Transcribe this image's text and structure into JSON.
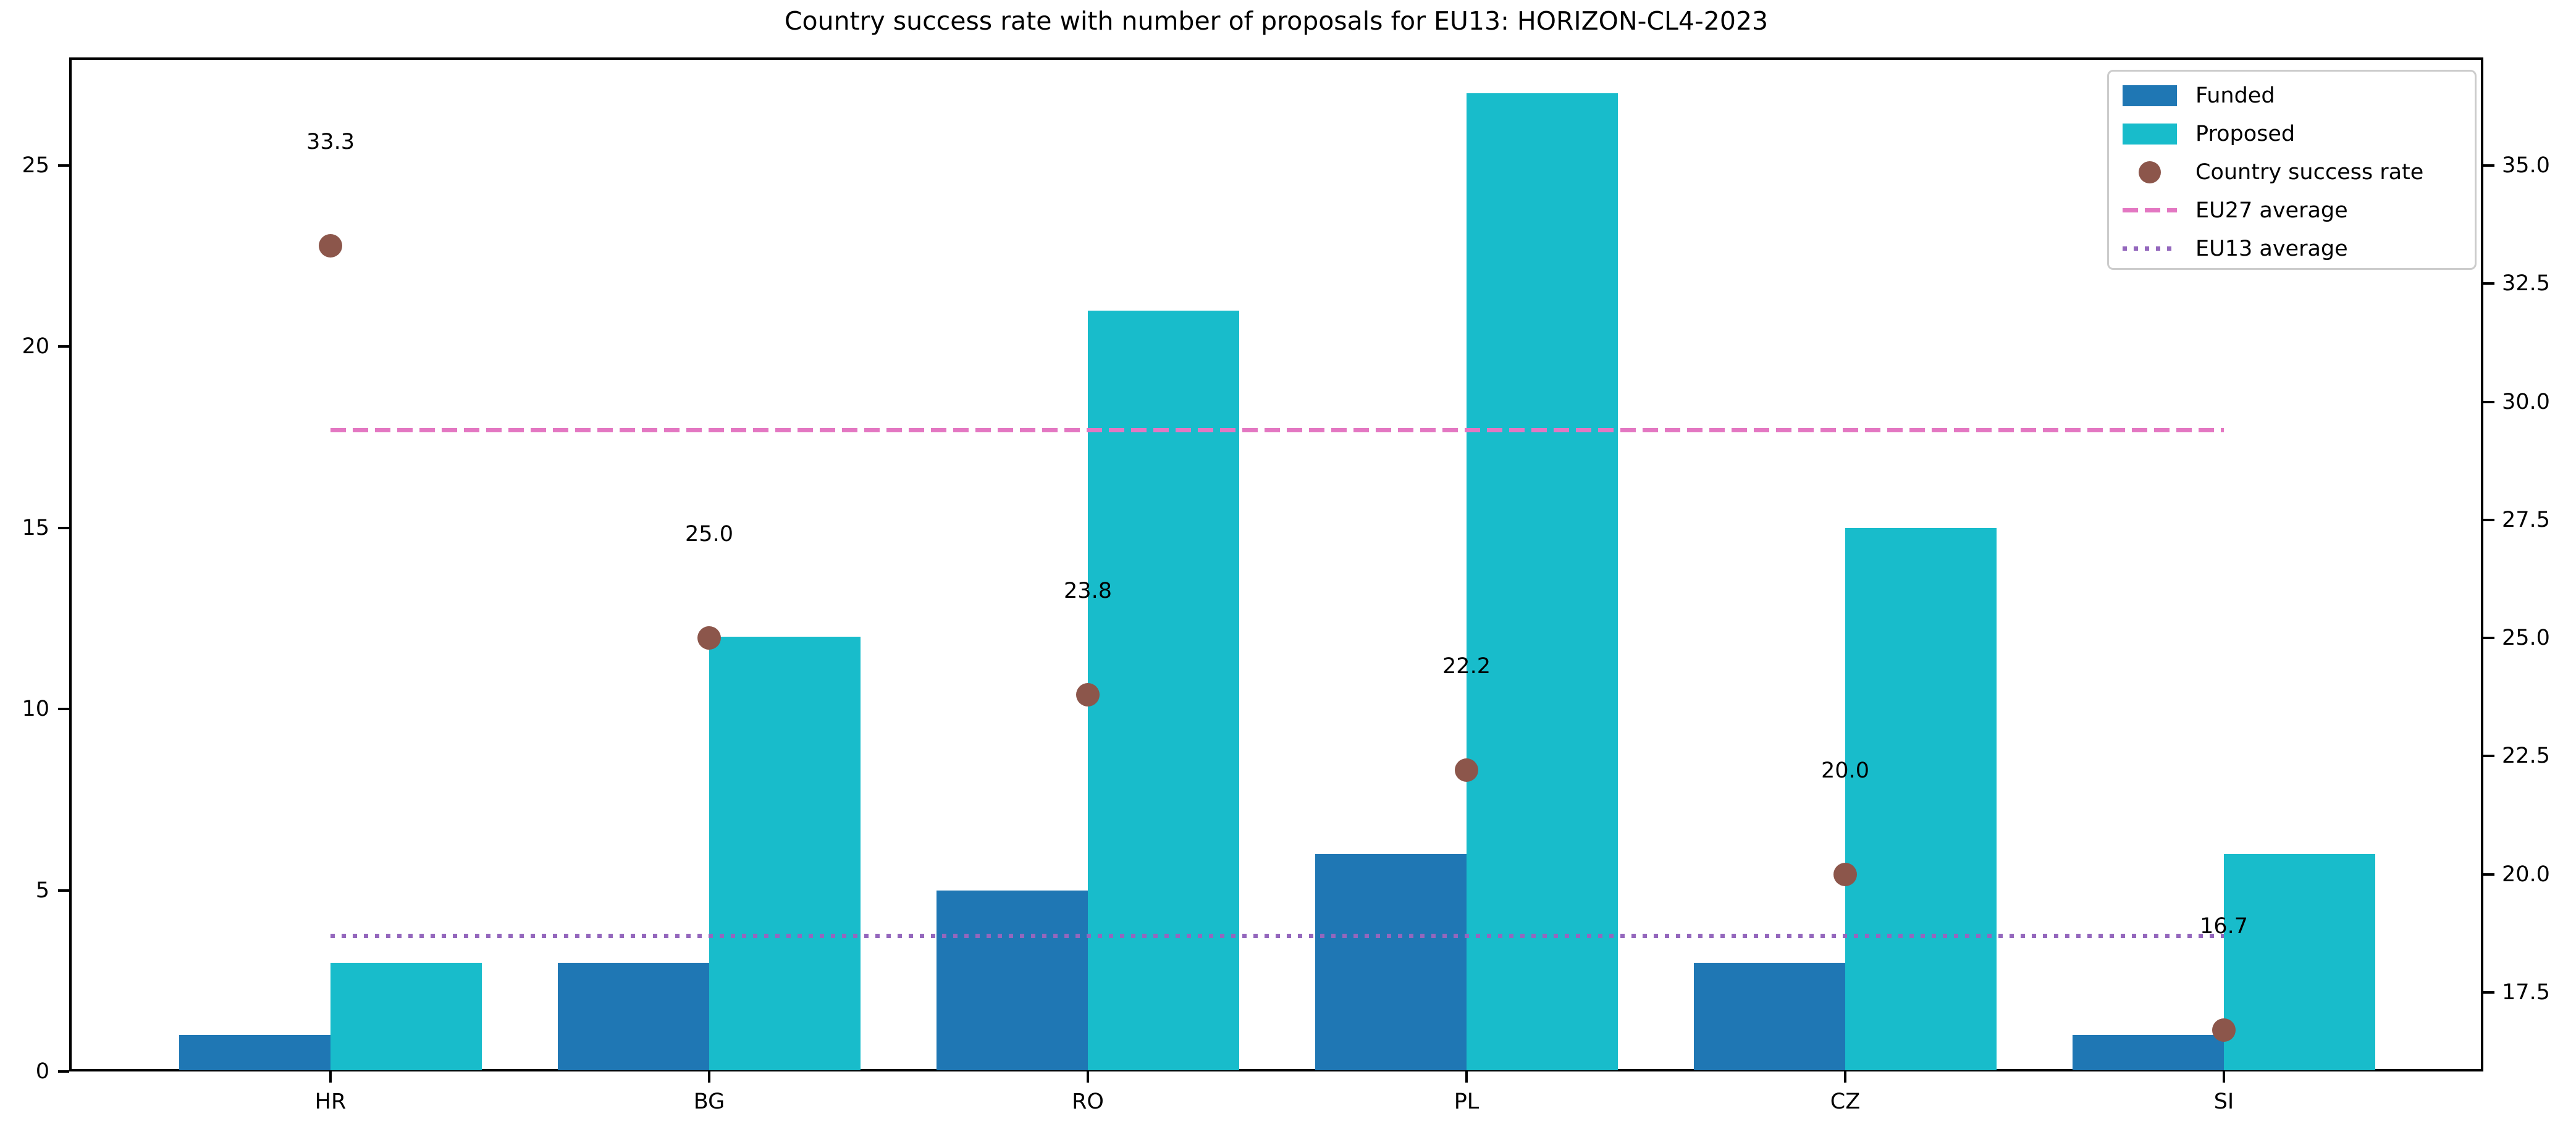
{
  "title": "Country success rate with number of proposals for EU13: HORIZON-CL4-2023",
  "legend": {
    "items": [
      {
        "label": "Funded",
        "swatch": "patch",
        "color": "#1f77b4"
      },
      {
        "label": "Proposed",
        "swatch": "patch",
        "color": "#18bccb"
      },
      {
        "label": "Country success rate",
        "swatch": "dot",
        "color": "#8c564b"
      },
      {
        "label": "EU27 average",
        "swatch": "dashed",
        "color": "#e377c2"
      },
      {
        "label": "EU13 average",
        "swatch": "dotted",
        "color": "#9467bd"
      }
    ]
  },
  "chart_data": {
    "type": "bar",
    "title": "Country success rate with number of proposals for EU13: HORIZON-CL4-2023",
    "categories": [
      "HR",
      "BG",
      "RO",
      "PL",
      "CZ",
      "SI"
    ],
    "series": [
      {
        "name": "Funded",
        "type": "bar",
        "axis": "left",
        "color": "#1f77b4",
        "values": [
          1,
          3,
          5,
          6,
          3,
          1
        ]
      },
      {
        "name": "Proposed",
        "type": "bar",
        "axis": "left",
        "color": "#18bccb",
        "values": [
          3,
          12,
          21,
          27,
          15,
          6
        ]
      },
      {
        "name": "Country success rate",
        "type": "scatter",
        "axis": "right",
        "color": "#8c564b",
        "values": [
          33.3,
          25.0,
          23.8,
          22.2,
          20.0,
          16.7
        ],
        "point_labels": [
          "33.3",
          "25.0",
          "23.8",
          "22.2",
          "20.0",
          "16.7"
        ]
      }
    ],
    "hlines": [
      {
        "name": "EU27 average",
        "axis": "right",
        "value": 29.4,
        "style": "dashed",
        "color": "#e377c2"
      },
      {
        "name": "EU13 average",
        "axis": "right",
        "value": 18.7,
        "style": "dotted",
        "color": "#9467bd"
      }
    ],
    "left_axis": {
      "ticks": [
        "0",
        "5",
        "10",
        "15",
        "20",
        "25"
      ],
      "tick_values": [
        0,
        5,
        10,
        15,
        20,
        25
      ],
      "range": [
        0,
        28.0
      ]
    },
    "right_axis": {
      "ticks": [
        "17.5",
        "20.0",
        "22.5",
        "25.0",
        "27.5",
        "30.0",
        "32.5",
        "35.0"
      ],
      "tick_values": [
        17.5,
        20.0,
        22.5,
        25.0,
        27.5,
        30.0,
        32.5,
        35.0
      ],
      "range": [
        15.8,
        37.3
      ]
    },
    "legend_position": "upper right",
    "grid": false,
    "colors": {
      "funded": "#1f77b4",
      "proposed": "#18bccb",
      "success_dot": "#8c564b",
      "eu27_line": "#e377c2",
      "eu13_line": "#9467bd",
      "spine": "#000000",
      "legend_border": "#cccccc"
    }
  }
}
